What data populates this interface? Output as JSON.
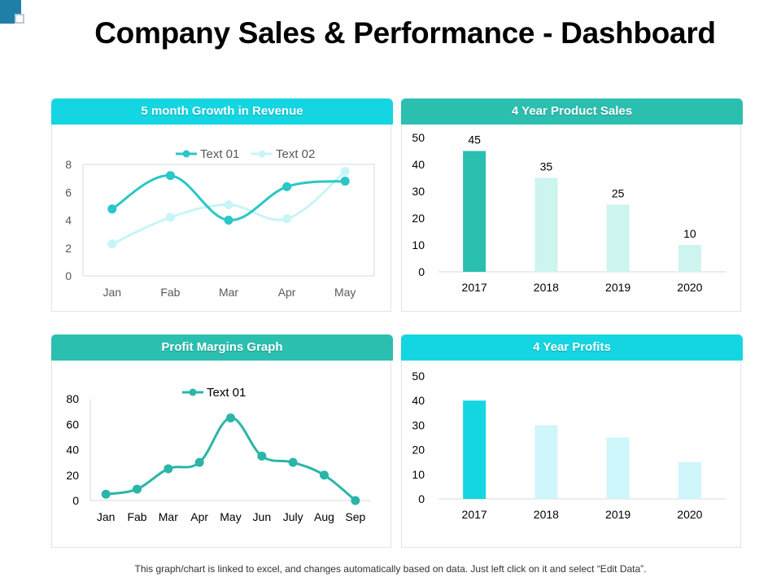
{
  "page": {
    "title": "Company Sales & Performance - Dashboard",
    "footer": "This graph/chart is linked to excel, and changes automatically based on data. Just left click on it and select “Edit Data”."
  },
  "colors": {
    "cyan": "#13d6e2",
    "teal": "#2bbfb0",
    "light_teal": "#cdf4ee",
    "light_cyan": "#cff6fa",
    "pale_cyan": "#c7f4f6",
    "axis": "#d9d9d9",
    "tick_text": "#595959",
    "tick_text_dark": "#000000"
  },
  "panels": [
    {
      "header": "5 month Growth in Revenue",
      "header_color": "#13d6e2"
    },
    {
      "header": "4 Year Product Sales",
      "header_color": "#2bbfb0"
    },
    {
      "header": "Profit Margins Graph",
      "header_color": "#2bbfb0"
    },
    {
      "header": "4 Year Profits",
      "header_color": "#13d6e2"
    }
  ],
  "chart_data": [
    {
      "type": "line",
      "title": "5 month Growth in Revenue",
      "categories": [
        "Jan",
        "Fab",
        "Mar",
        "Apr",
        "May"
      ],
      "series": [
        {
          "name": "Text 01",
          "values": [
            4.8,
            7.2,
            4.0,
            6.4,
            6.8
          ],
          "color": "#2bc6c6"
        },
        {
          "name": "Text 02",
          "values": [
            2.3,
            4.2,
            5.1,
            4.1,
            7.5
          ],
          "color": "#c8f5f7"
        }
      ],
      "yticks": [
        "0",
        "2",
        "4",
        "6",
        "8"
      ],
      "ylim": [
        0,
        8
      ],
      "legend": "top",
      "smooth": true
    },
    {
      "type": "bar",
      "title": "4 Year Product Sales",
      "categories": [
        "2017",
        "2018",
        "2019",
        "2020"
      ],
      "values": [
        45,
        35,
        25,
        10
      ],
      "data_labels": [
        "45",
        "35",
        "25",
        "10"
      ],
      "bar_colors": [
        "#2bbfb0",
        "#cdf4ee",
        "#cdf4ee",
        "#cdf4ee"
      ],
      "yticks": [
        "0",
        "10",
        "20",
        "30",
        "40",
        "50"
      ],
      "ylim": [
        0,
        50
      ]
    },
    {
      "type": "line",
      "title": "Profit Margins Graph",
      "categories": [
        "Jan",
        "Fab",
        "Mar",
        "Apr",
        "May",
        "Jun",
        "July",
        "Aug",
        "Sep"
      ],
      "series": [
        {
          "name": "Text 01",
          "values": [
            5,
            9,
            25,
            30,
            65,
            35,
            30,
            20,
            0
          ],
          "color": "#2bb5a8"
        }
      ],
      "yticks": [
        "0",
        "20",
        "40",
        "60",
        "80"
      ],
      "ylim": [
        0,
        80
      ],
      "legend": "top",
      "smooth": true
    },
    {
      "type": "bar",
      "title": "4 Year Profits",
      "categories": [
        "2017",
        "2018",
        "2019",
        "2020"
      ],
      "values": [
        40,
        30,
        25,
        15
      ],
      "bar_colors": [
        "#13d6e2",
        "#cff6fa",
        "#cff6fa",
        "#cff6fa"
      ],
      "yticks": [
        "0",
        "10",
        "20",
        "30",
        "40",
        "50"
      ],
      "ylim": [
        0,
        50
      ]
    }
  ]
}
